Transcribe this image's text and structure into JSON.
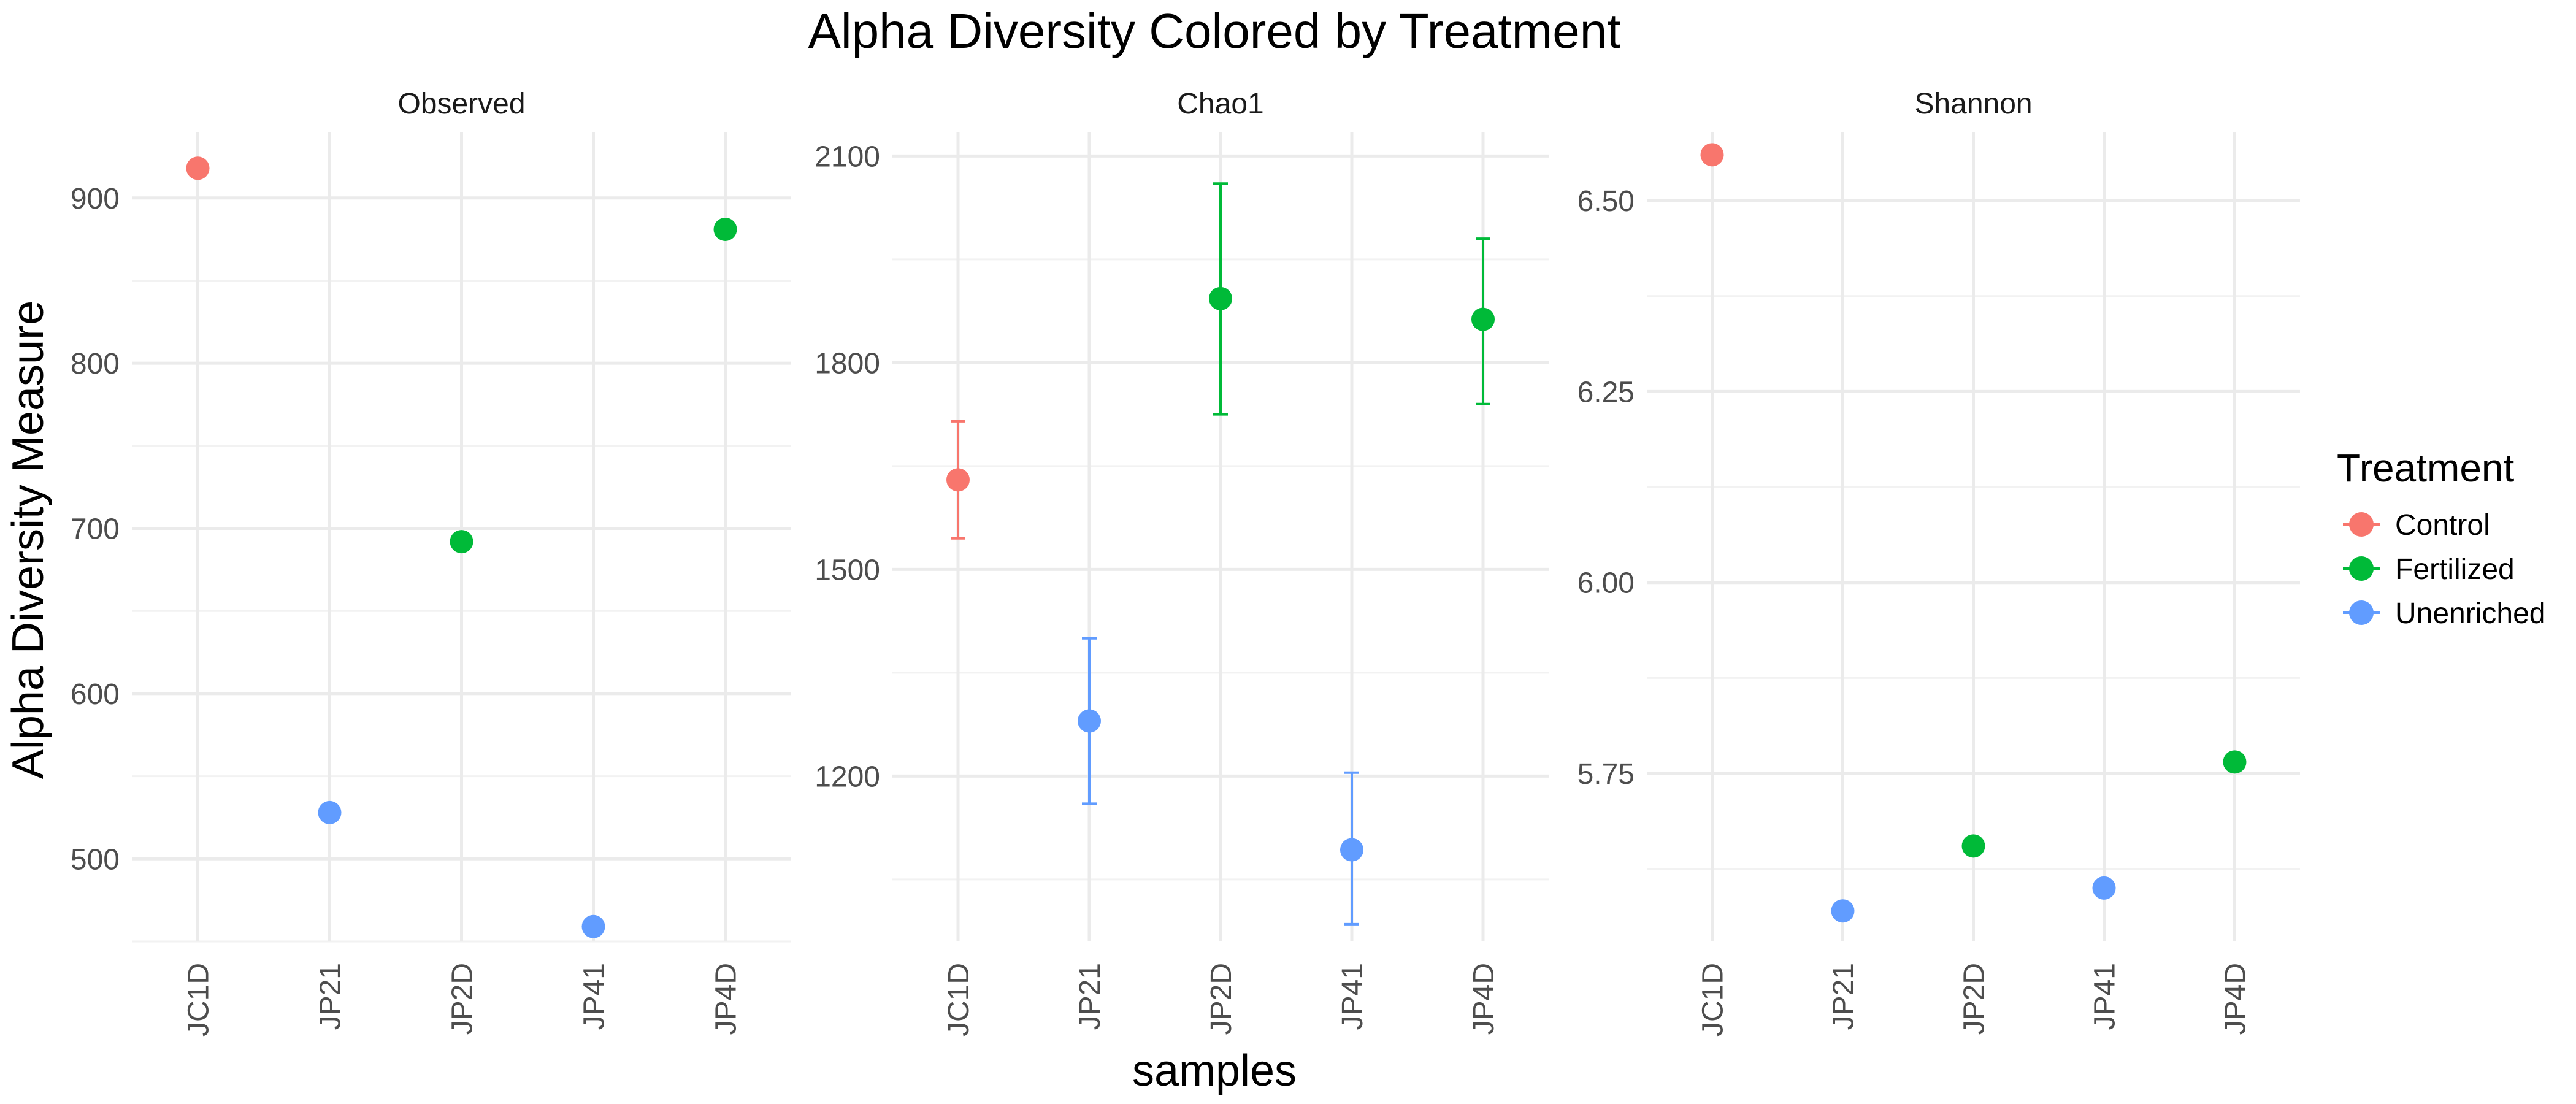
{
  "chart_data": {
    "type": "scatter",
    "title": "Alpha Diversity Colored by Treatment",
    "xlabel": "samples",
    "ylabel": "Alpha Diversity Measure",
    "categories": [
      "JC1D",
      "JP21",
      "JP2D",
      "JP41",
      "JP4D"
    ],
    "legend": {
      "title": "Treatment",
      "position": "right",
      "entries": [
        {
          "name": "Control",
          "color": "#F8766D"
        },
        {
          "name": "Fertilized",
          "color": "#00BA38"
        },
        {
          "name": "Unenriched",
          "color": "#619CFF"
        }
      ]
    },
    "panels": [
      {
        "name": "Observed",
        "ylim": [
          450,
          940
        ],
        "yticks": [
          500,
          600,
          700,
          800,
          900
        ],
        "ytick_labels": [
          "500",
          "600",
          "700",
          "800",
          "900"
        ],
        "minor_ticks": [
          450,
          550,
          650,
          750,
          850
        ],
        "points": [
          {
            "sample": "JC1D",
            "treatment": "Control",
            "value": 918
          },
          {
            "sample": "JP21",
            "treatment": "Unenriched",
            "value": 528
          },
          {
            "sample": "JP2D",
            "treatment": "Fertilized",
            "value": 692
          },
          {
            "sample": "JP41",
            "treatment": "Unenriched",
            "value": 459
          },
          {
            "sample": "JP4D",
            "treatment": "Fertilized",
            "value": 881
          }
        ]
      },
      {
        "name": "Chao1",
        "ylim": [
          960,
          2135
        ],
        "yticks": [
          1200,
          1500,
          1800,
          2100
        ],
        "ytick_labels": [
          "1200",
          "1500",
          "1800",
          "2100"
        ],
        "minor_ticks": [
          1050,
          1350,
          1650,
          1950
        ],
        "points": [
          {
            "sample": "JC1D",
            "treatment": "Control",
            "value": 1630,
            "lower": 1545,
            "upper": 1715
          },
          {
            "sample": "JP21",
            "treatment": "Unenriched",
            "value": 1280,
            "lower": 1160,
            "upper": 1400
          },
          {
            "sample": "JP2D",
            "treatment": "Fertilized",
            "value": 1893,
            "lower": 1725,
            "upper": 2060
          },
          {
            "sample": "JP41",
            "treatment": "Unenriched",
            "value": 1093,
            "lower": 985,
            "upper": 1205
          },
          {
            "sample": "JP4D",
            "treatment": "Fertilized",
            "value": 1863,
            "lower": 1740,
            "upper": 1980
          }
        ]
      },
      {
        "name": "Shannon",
        "ylim": [
          5.53,
          6.59
        ],
        "yticks": [
          5.75,
          6.0,
          6.25,
          6.5
        ],
        "ytick_labels": [
          "5.75",
          "6.00",
          "6.25",
          "6.50"
        ],
        "minor_ticks": [
          5.625,
          5.875,
          6.125,
          6.375
        ],
        "points": [
          {
            "sample": "JC1D",
            "treatment": "Control",
            "value": 6.56
          },
          {
            "sample": "JP21",
            "treatment": "Unenriched",
            "value": 5.57
          },
          {
            "sample": "JP2D",
            "treatment": "Fertilized",
            "value": 5.655
          },
          {
            "sample": "JP41",
            "treatment": "Unenriched",
            "value": 5.6
          },
          {
            "sample": "JP4D",
            "treatment": "Fertilized",
            "value": 5.765
          }
        ]
      }
    ]
  }
}
